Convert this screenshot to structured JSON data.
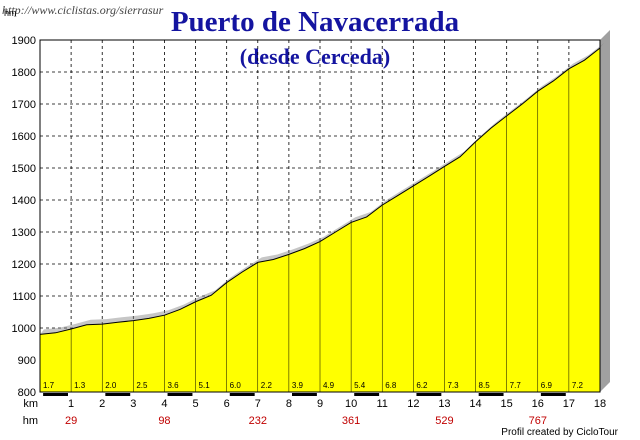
{
  "header": {
    "url": "http://www.ciclistas.org/sierrasur",
    "title": "Puerto de Navacerrada",
    "subtitle": "(desde Cerceda)"
  },
  "footer": {
    "credit": "Profil created by CicloTour"
  },
  "chart_data": {
    "type": "area",
    "title": "Puerto de Navacerrada",
    "subtitle": "(desde Cerceda)",
    "ylabel": "hm",
    "xlabel": "km",
    "ylim": [
      800,
      1900
    ],
    "xlim": [
      0,
      18
    ],
    "y_ticks": [
      800,
      900,
      1000,
      1100,
      1200,
      1300,
      1400,
      1500,
      1600,
      1700,
      1800,
      1900
    ],
    "x_ticks": [
      1,
      2,
      3,
      4,
      5,
      6,
      7,
      8,
      9,
      10,
      11,
      12,
      13,
      14,
      15,
      16,
      17,
      18
    ],
    "grid": true,
    "colors": {
      "fill": "#ffff00",
      "outline": "#000000",
      "shadow": "#808080",
      "hm_labels": "#c00000"
    },
    "profile": {
      "x": [
        0,
        0.5,
        1,
        1.5,
        2,
        2.5,
        3,
        3.5,
        4,
        4.5,
        5,
        5.5,
        6,
        6.5,
        7,
        7.5,
        8,
        8.5,
        9,
        9.5,
        10,
        10.5,
        11,
        11.5,
        12,
        12.5,
        13,
        13.5,
        14,
        14.5,
        15,
        15.5,
        16,
        16.5,
        17,
        17.5,
        18
      ],
      "y": [
        980,
        985,
        997,
        1010,
        1012,
        1018,
        1023,
        1030,
        1040,
        1058,
        1082,
        1102,
        1142,
        1175,
        1205,
        1214,
        1230,
        1248,
        1270,
        1300,
        1330,
        1347,
        1384,
        1414,
        1444,
        1474,
        1505,
        1535,
        1582,
        1625,
        1663,
        1700,
        1740,
        1772,
        1810,
        1837,
        1875
      ]
    },
    "segment_gradients": [
      {
        "segment": 1,
        "value": "1.7"
      },
      {
        "segment": 2,
        "value": "1.3"
      },
      {
        "segment": 3,
        "value": "2.0"
      },
      {
        "segment": 4,
        "value": "2.5"
      },
      {
        "segment": 5,
        "value": "3.6"
      },
      {
        "segment": 6,
        "value": "5.1"
      },
      {
        "segment": 7,
        "value": "6.0"
      },
      {
        "segment": 8,
        "value": "2.2"
      },
      {
        "segment": 9,
        "value": "3.9"
      },
      {
        "segment": 10,
        "value": "4.9"
      },
      {
        "segment": 11,
        "value": "5.4"
      },
      {
        "segment": 12,
        "value": "6.8"
      },
      {
        "segment": 13,
        "value": "6.2"
      },
      {
        "segment": 14,
        "value": "7.3"
      },
      {
        "segment": 15,
        "value": "8.5"
      },
      {
        "segment": 16,
        "value": "7.7"
      },
      {
        "segment": 17,
        "value": "6.9"
      },
      {
        "segment": 18,
        "value": "7.2"
      }
    ],
    "cumulative_climb": [
      {
        "km": 1,
        "value": "29"
      },
      {
        "km": 4,
        "value": "98"
      },
      {
        "km": 7,
        "value": "232"
      },
      {
        "km": 10,
        "value": "361"
      },
      {
        "km": 13,
        "value": "529"
      },
      {
        "km": 16,
        "value": "767"
      }
    ]
  }
}
